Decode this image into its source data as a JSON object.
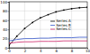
{
  "chart_data": {
    "type": "line",
    "x": [
      0,
      1,
      2,
      3,
      4,
      5,
      6,
      7,
      8,
      9,
      10
    ],
    "series": [
      {
        "name": "Series A",
        "color": "#000000",
        "marker": "circle",
        "values": [
          5,
          25,
          42,
          55,
          65,
          72,
          78,
          82,
          85,
          87,
          88
        ]
      },
      {
        "name": "Series B",
        "color": "#3355cc",
        "values": [
          15,
          18,
          20,
          20,
          21,
          21,
          22,
          22,
          22,
          23,
          23
        ]
      },
      {
        "name": "Series C",
        "color": "#cc2266",
        "values": [
          10,
          12,
          13,
          13,
          14,
          14,
          14,
          15,
          15,
          15,
          15
        ]
      }
    ],
    "xlim": [
      0,
      10
    ],
    "xticks": [
      0,
      2,
      4,
      6,
      8,
      10
    ],
    "ylim": [
      0,
      100
    ],
    "yticks": [
      0,
      20,
      40,
      60,
      80,
      100
    ],
    "grid": true,
    "legend": "center right"
  }
}
